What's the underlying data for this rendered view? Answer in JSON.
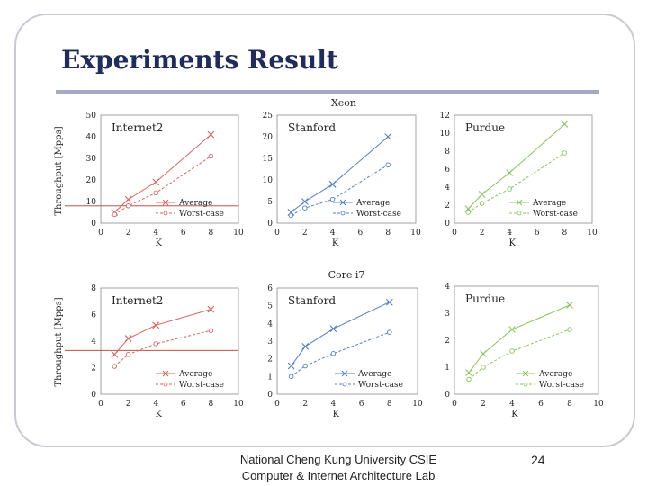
{
  "slide": {
    "title": "Experiments Result",
    "footer_line1": "National Cheng Kung University CSIE",
    "footer_line2": "Computer & Internet Architecture Lab",
    "page_number": "24"
  },
  "groups": [
    {
      "title": "Xeon",
      "ylabel": "Throughput [Mpps]"
    },
    {
      "title": "Core i7",
      "ylabel": "Throughput [Mpps]"
    }
  ],
  "chart_data": [
    {
      "type": "line",
      "group": "Xeon",
      "title": "Internet2",
      "xlabel": "K",
      "ylabel": "Throughput [Mpps]",
      "x": [
        1,
        2,
        4,
        8
      ],
      "xlim": [
        0,
        10
      ],
      "xticks": [
        0,
        2,
        4,
        6,
        8,
        10
      ],
      "ylim": [
        0,
        50
      ],
      "yticks": [
        0,
        10,
        20,
        30,
        40,
        50
      ],
      "color": "#d9625f",
      "legend": "lower-right",
      "hline": 8,
      "series": [
        {
          "name": "Average",
          "values": [
            5,
            11,
            19,
            41
          ],
          "marker": "x",
          "dash": false
        },
        {
          "name": "Worst-case",
          "values": [
            4,
            8,
            14,
            31
          ],
          "marker": "o",
          "dash": true
        }
      ]
    },
    {
      "type": "line",
      "group": "Xeon",
      "title": "Stanford",
      "xlabel": "K",
      "ylabel": "",
      "x": [
        1,
        2,
        4,
        8
      ],
      "xlim": [
        0,
        10
      ],
      "xticks": [
        0,
        2,
        4,
        6,
        8,
        10
      ],
      "ylim": [
        0,
        25
      ],
      "yticks": [
        0,
        5,
        10,
        15,
        20,
        25
      ],
      "color": "#4f7fc4",
      "legend": "lower-right",
      "series": [
        {
          "name": "Average",
          "values": [
            2.5,
            5,
            9,
            20
          ],
          "marker": "x",
          "dash": false
        },
        {
          "name": "Worst-case",
          "values": [
            1.8,
            3.5,
            5.5,
            13.5
          ],
          "marker": "o",
          "dash": true
        }
      ]
    },
    {
      "type": "line",
      "group": "Xeon",
      "title": "Purdue",
      "xlabel": "K",
      "ylabel": "",
      "x": [
        1,
        2,
        4,
        8
      ],
      "xlim": [
        0,
        10
      ],
      "xticks": [
        0,
        2,
        4,
        6,
        8,
        10
      ],
      "ylim": [
        0,
        12
      ],
      "yticks": [
        0,
        2,
        4,
        6,
        8,
        10,
        12
      ],
      "color": "#8cc35c",
      "legend": "lower-right",
      "series": [
        {
          "name": "Average",
          "values": [
            1.6,
            3.2,
            5.6,
            11
          ],
          "marker": "x",
          "dash": false
        },
        {
          "name": "Worst-case",
          "values": [
            1.2,
            2.2,
            3.8,
            7.8
          ],
          "marker": "o",
          "dash": true
        }
      ]
    },
    {
      "type": "line",
      "group": "Core i7",
      "title": "Internet2",
      "xlabel": "K",
      "ylabel": "Throughput [Mpps]",
      "x": [
        1,
        2,
        4,
        8
      ],
      "xlim": [
        0,
        10
      ],
      "xticks": [
        0,
        2,
        4,
        6,
        8,
        10
      ],
      "ylim": [
        0,
        8
      ],
      "yticks": [
        0,
        2,
        4,
        6,
        8
      ],
      "color": "#d9625f",
      "legend": "lower-right",
      "hline": 3.3,
      "series": [
        {
          "name": "Average",
          "values": [
            3.0,
            4.2,
            5.2,
            6.4
          ],
          "marker": "x",
          "dash": false
        },
        {
          "name": "Worst-case",
          "values": [
            2.1,
            3.0,
            3.8,
            4.8
          ],
          "marker": "o",
          "dash": true
        }
      ]
    },
    {
      "type": "line",
      "group": "Core i7",
      "title": "Stanford",
      "xlabel": "K",
      "ylabel": "",
      "x": [
        1,
        2,
        4,
        8
      ],
      "xlim": [
        0,
        10
      ],
      "xticks": [
        0,
        2,
        4,
        6,
        8,
        10
      ],
      "ylim": [
        0,
        6
      ],
      "yticks": [
        0,
        1,
        2,
        3,
        4,
        5,
        6
      ],
      "color": "#4f7fc4",
      "legend": "lower-right",
      "series": [
        {
          "name": "Average",
          "values": [
            1.6,
            2.7,
            3.7,
            5.2
          ],
          "marker": "x",
          "dash": false
        },
        {
          "name": "Worst-case",
          "values": [
            1.0,
            1.6,
            2.3,
            3.5
          ],
          "marker": "o",
          "dash": true
        }
      ]
    },
    {
      "type": "line",
      "group": "Core i7",
      "title": "Purdue",
      "xlabel": "K",
      "ylabel": "",
      "x": [
        1,
        2,
        4,
        8
      ],
      "xlim": [
        0,
        10
      ],
      "xticks": [
        0,
        2,
        4,
        6,
        8,
        10
      ],
      "ylim": [
        0,
        4
      ],
      "yticks": [
        0,
        1,
        2,
        3,
        4
      ],
      "color": "#8cc35c",
      "legend": "lower-right",
      "series": [
        {
          "name": "Average",
          "values": [
            0.8,
            1.5,
            2.4,
            3.3
          ],
          "marker": "x",
          "dash": false
        },
        {
          "name": "Worst-case",
          "values": [
            0.55,
            1.0,
            1.6,
            2.4
          ],
          "marker": "o",
          "dash": true
        }
      ]
    }
  ]
}
